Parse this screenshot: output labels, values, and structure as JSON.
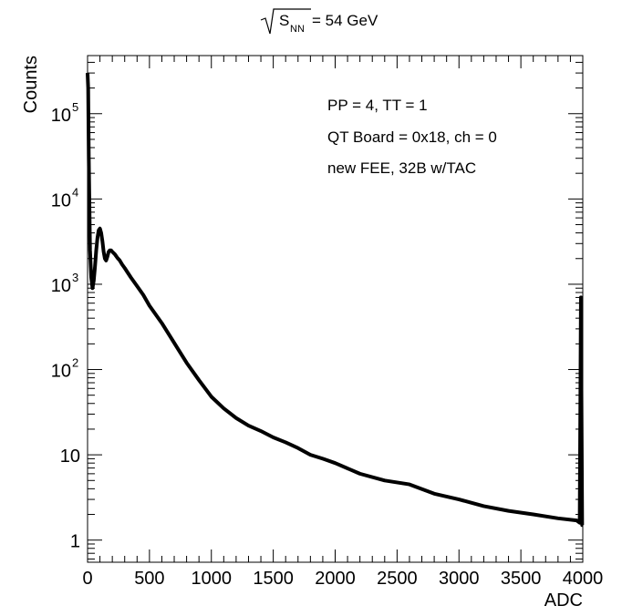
{
  "chart_data": {
    "type": "line",
    "title": {
      "radicand": "S",
      "subscript": "NN",
      "value": "= 54 GeV"
    },
    "xlabel": "ADC",
    "ylabel": "Counts",
    "xlim": [
      0,
      4000
    ],
    "ylim": [
      0.55,
      480000
    ],
    "yscale": "log",
    "grid": false,
    "x_ticks": [
      {
        "v": 0,
        "label": "0"
      },
      {
        "v": 500,
        "label": "500"
      },
      {
        "v": 1000,
        "label": "1000"
      },
      {
        "v": 1500,
        "label": "1500"
      },
      {
        "v": 2000,
        "label": "2000"
      },
      {
        "v": 2500,
        "label": "2500"
      },
      {
        "v": 3000,
        "label": "3000"
      },
      {
        "v": 3500,
        "label": "3500"
      },
      {
        "v": 4000,
        "label": "4000"
      }
    ],
    "y_ticks": [
      {
        "v": 1,
        "label": "1",
        "exp": ""
      },
      {
        "v": 10,
        "label": "10",
        "exp": ""
      },
      {
        "v": 100,
        "label": "10",
        "exp": "2"
      },
      {
        "v": 1000,
        "label": "10",
        "exp": "3"
      },
      {
        "v": 10000,
        "label": "10",
        "exp": "4"
      },
      {
        "v": 100000,
        "label": "10",
        "exp": "5"
      }
    ],
    "annotations": [
      "PP = 4, TT = 1",
      "QT Board = 0x18, ch = 0",
      "new FEE, 32B w/TAC"
    ],
    "series": [
      {
        "x": [
          0,
          5,
          10,
          20,
          30,
          40,
          50,
          60,
          70,
          80,
          90,
          100,
          110,
          120,
          130,
          140,
          150,
          160,
          170,
          180,
          190,
          200,
          220,
          240,
          260,
          280,
          300,
          350,
          400,
          450,
          500,
          600,
          700,
          800,
          900,
          1000,
          1100,
          1200,
          1300,
          1400,
          1500,
          1600,
          1700,
          1800,
          1900,
          2000,
          2200,
          2400,
          2600,
          2800,
          3000,
          3200,
          3400,
          3600,
          3800,
          3950,
          3975,
          3985,
          3990,
          3995,
          4000
        ],
        "y": [
          300000,
          200000,
          30000,
          2500,
          1200,
          900,
          1100,
          1600,
          2500,
          3500,
          4300,
          4500,
          4000,
          3200,
          2400,
          2000,
          1900,
          2100,
          2400,
          2500,
          2500,
          2400,
          2250,
          2050,
          1900,
          1700,
          1550,
          1200,
          950,
          750,
          560,
          350,
          205,
          120,
          75,
          48,
          35,
          27,
          22,
          19,
          16,
          14,
          12,
          10,
          9,
          8,
          6,
          5,
          4.5,
          3.5,
          3,
          2.5,
          2.2,
          2,
          1.8,
          1.7,
          1.6,
          700,
          30,
          1.5,
          1.5
        ]
      }
    ]
  }
}
